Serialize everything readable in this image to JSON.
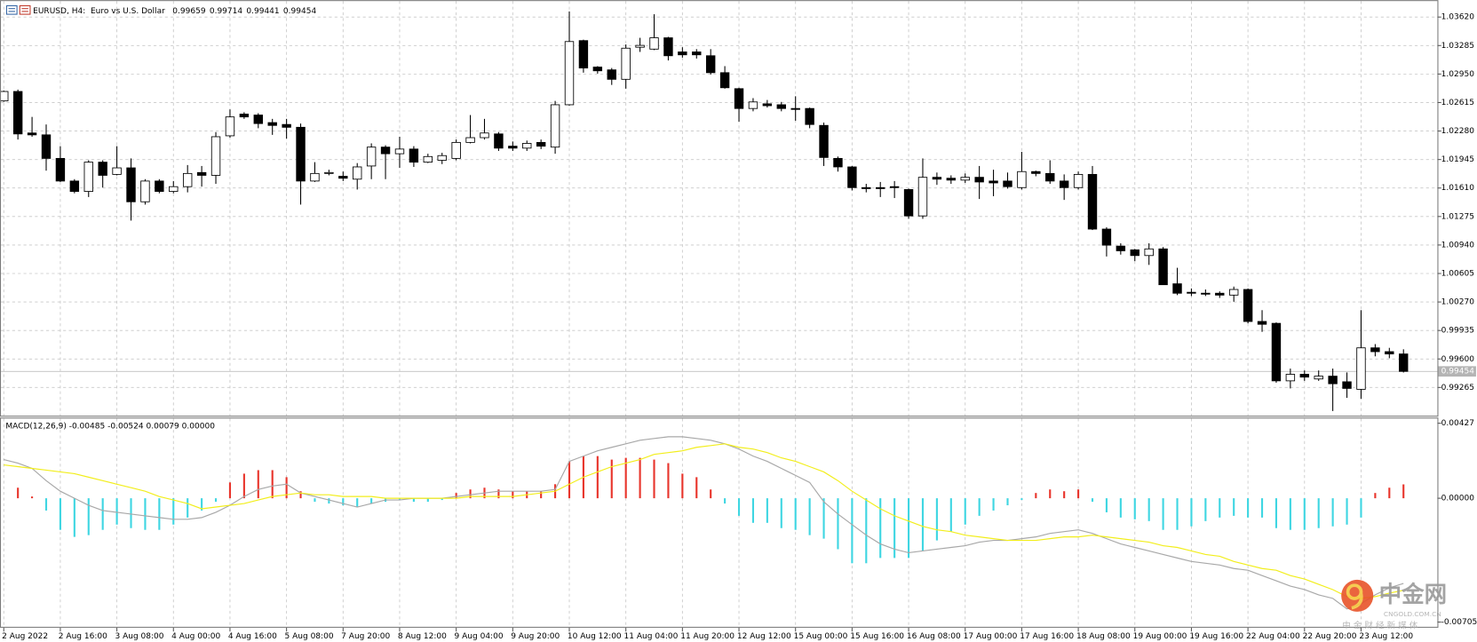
{
  "chart_data": [
    {
      "type": "candlestick",
      "title": "EURUSD, H4:  Euro vs U.S. Dollar",
      "categories": [
        "2 Aug 2022",
        null,
        null,
        null,
        "2 Aug 16:00",
        null,
        null,
        null,
        "3 Aug 08:00",
        null,
        null,
        null,
        "4 Aug 00:00",
        null,
        null,
        null,
        "4 Aug 16:00",
        null,
        null,
        null,
        "5 Aug 08:00",
        null,
        null,
        null,
        "7 Aug 20:00",
        null,
        null,
        null,
        "8 Aug 12:00",
        null,
        null,
        null,
        "9 Aug 04:00",
        null,
        null,
        null,
        "9 Aug 20:00",
        null,
        null,
        null,
        "10 Aug 12:00",
        null,
        null,
        null,
        "11 Aug 04:00",
        null,
        null,
        null,
        "11 Aug 20:00",
        null,
        null,
        null,
        "12 Aug 12:00",
        null,
        null,
        null,
        "15 Aug 00:00",
        null,
        null,
        null,
        "15 Aug 16:00",
        null,
        null,
        null,
        "16 Aug 08:00",
        null,
        null,
        null,
        "17 Aug 00:00",
        null,
        null,
        null,
        "17 Aug 16:00",
        null,
        null,
        null,
        "18 Aug 08:00",
        null,
        null,
        null,
        "19 Aug 00:00",
        null,
        null,
        null,
        "19 Aug 16:00",
        null,
        null,
        null,
        "22 Aug 04:00",
        null,
        null,
        null,
        "22 Aug 20:00",
        null,
        null,
        null,
        "23 Aug 12:00",
        null,
        null,
        null
      ],
      "open": [
        1.02634,
        1.02745,
        1.02257,
        1.02235,
        1.01958,
        1.01692,
        1.0157,
        1.01914,
        1.0177,
        1.01847,
        1.01448,
        1.01692,
        1.0157,
        1.01626,
        1.01792,
        1.01759,
        1.02224,
        1.02479,
        1.02468,
        1.02379,
        1.02357,
        1.02324,
        1.01692,
        1.01781,
        1.01748,
        1.01714,
        1.01869,
        1.02091,
        1.02013,
        1.02068,
        1.01914,
        1.01936,
        1.01958,
        1.02146,
        1.02202,
        1.02246,
        1.02102,
        1.02079,
        1.02146,
        1.02091,
        1.02589,
        1.03343,
        1.03032,
        1.02999,
        1.02888,
        1.03265,
        1.03243,
        1.03376,
        1.0321,
        1.0321,
        1.03165,
        1.02966,
        1.02778,
        1.02545,
        1.026,
        1.02589,
        1.02545,
        1.02545,
        1.02346,
        1.01958,
        1.01858,
        1.01615,
        1.01615,
        1.01626,
        1.01592,
        1.01282,
        1.01736,
        1.01725,
        1.01703,
        1.01736,
        1.01692,
        1.01692,
        1.01615,
        1.01803,
        1.01781,
        1.01692,
        1.01615,
        1.0177,
        1.01127,
        1.00927,
        1.00883,
        1.00816,
        1.00894,
        1.00484,
        1.00384,
        1.00373,
        1.00373,
        1.00351,
        1.00417,
        1.00041,
        1.00019,
        0.99343,
        0.9942,
        0.99365,
        0.99398,
        0.99332,
        0.99243,
        0.99731,
        0.99686,
        0.99659
      ],
      "high": [
        1.02756,
        1.02767,
        1.02446,
        1.02357,
        1.02102,
        1.01714,
        1.01936,
        1.01936,
        1.02102,
        1.01958,
        1.01714,
        1.01714,
        1.01692,
        1.0188,
        1.01869,
        1.02268,
        1.02534,
        1.02501,
        1.0249,
        1.02423,
        1.02423,
        1.02368,
        1.01914,
        1.01825,
        1.01803,
        1.01903,
        1.02135,
        1.02113,
        1.02213,
        1.02102,
        1.02013,
        1.02024,
        1.0218,
        1.02468,
        1.02423,
        1.02268,
        1.02157,
        1.02168,
        1.0218,
        1.02634,
        1.03686,
        1.03354,
        1.03043,
        1.03021,
        1.03298,
        1.03376,
        1.03653,
        1.03387,
        1.03265,
        1.03243,
        1.03243,
        1.03043,
        1.02789,
        1.02667,
        1.02645,
        1.02622,
        1.02689,
        1.02556,
        1.02379,
        1.0198,
        1.01869,
        1.01659,
        1.01681,
        1.01692,
        1.01603,
        1.01958,
        1.01792,
        1.01759,
        1.01781,
        1.01869,
        1.01825,
        1.01792,
        1.02035,
        1.01814,
        1.01936,
        1.0177,
        1.01803,
        1.01869,
        1.01149,
        1.0096,
        1.00894,
        1.0096,
        1.00916,
        1.00672,
        1.00429,
        1.00417,
        1.00395,
        1.00451,
        1.00429,
        1.00174,
        1.0003,
        0.99487,
        0.99465,
        0.99465,
        0.99487,
        0.99442,
        1.00174,
        0.99775,
        0.99731,
        0.99714
      ],
      "low": [
        1.02623,
        1.0218,
        1.02213,
        1.01814,
        1.01681,
        1.01548,
        1.01504,
        1.01615,
        1.01759,
        1.01227,
        1.01415,
        1.01548,
        1.01548,
        1.01559,
        1.01626,
        1.01659,
        1.02202,
        1.02423,
        1.02313,
        1.02235,
        1.02191,
        1.01415,
        1.01681,
        1.01759,
        1.01692,
        1.01592,
        1.01714,
        1.01714,
        1.01847,
        1.01858,
        1.01903,
        1.01891,
        1.01936,
        1.02135,
        1.0218,
        1.02046,
        1.02046,
        1.02046,
        1.02068,
        1.02013,
        1.02578,
        1.02966,
        1.02955,
        1.02822,
        1.02778,
        1.0321,
        1.03232,
        1.0311,
        1.03143,
        1.03132,
        1.02944,
        1.02778,
        1.0239,
        1.02512,
        1.02556,
        1.02512,
        1.02401,
        1.02313,
        1.01869,
        1.01803,
        1.01581,
        1.01559,
        1.01504,
        1.01492,
        1.01248,
        1.01248,
        1.01647,
        1.01659,
        1.0167,
        1.01481,
        1.01514,
        1.01603,
        1.01592,
        1.01748,
        1.01659,
        1.0147,
        1.01592,
        1.01116,
        1.00805,
        1.00827,
        1.0075,
        1.00706,
        1.00473,
        1.00351,
        1.0034,
        1.0034,
        1.00318,
        1.00273,
        1.00019,
        0.99919,
        0.99321,
        0.99254,
        0.99343,
        0.99343,
        0.98988,
        0.99143,
        0.99132,
        0.99631,
        0.99609,
        0.99441
      ],
      "close": [
        1.02745,
        1.02246,
        1.02235,
        1.01958,
        1.01692,
        1.0157,
        1.01914,
        1.01759,
        1.01847,
        1.01448,
        1.01692,
        1.0157,
        1.01626,
        1.01781,
        1.01759,
        1.02213,
        1.02446,
        1.02446,
        1.02368,
        1.02346,
        1.02324,
        1.01692,
        1.01781,
        1.01792,
        1.01725,
        1.01858,
        1.02091,
        1.02013,
        1.02068,
        1.01914,
        1.0198,
        1.01991,
        1.02146,
        1.02202,
        1.02257,
        1.02079,
        1.02079,
        1.02135,
        1.02102,
        1.02589,
        1.03332,
        1.03021,
        1.02988,
        1.02888,
        1.03254,
        1.03287,
        1.03376,
        1.03165,
        1.03176,
        1.03176,
        1.02966,
        1.02789,
        1.02545,
        1.02622,
        1.02578,
        1.02545,
        1.02534,
        1.02357,
        1.01969,
        1.01858,
        1.01615,
        1.01603,
        1.01603,
        1.01615,
        1.01282,
        1.01736,
        1.01714,
        1.01703,
        1.01736,
        1.01681,
        1.0167,
        1.01626,
        1.01803,
        1.01781,
        1.01692,
        1.01615,
        1.0177,
        1.01127,
        1.00938,
        1.00872,
        1.00816,
        1.00894,
        1.00473,
        1.00373,
        1.00373,
        1.00362,
        1.00351,
        1.00417,
        1.00041,
        1.00008,
        0.99343,
        0.9942,
        0.99387,
        0.99398,
        0.99309,
        0.99254,
        0.99731,
        0.99686,
        0.99659,
        0.99454
      ],
      "up_color": "#ffffff",
      "down_color": "#000000",
      "ylim": [
        0.98933,
        1.03819
      ],
      "yticks": [
        {
          "value": 1.0362,
          "label": "1.03620"
        },
        1.03285,
        {
          "value": 1.0295,
          "label": "1.02950"
        },
        1.02615,
        {
          "value": 1.0228,
          "label": "1.02280"
        },
        1.01945,
        {
          "value": 1.0161,
          "label": "1.01610"
        },
        1.01275,
        {
          "value": 1.0094,
          "label": "1.00940"
        },
        1.00605,
        {
          "value": 1.0027,
          "label": "1.00270"
        },
        0.99935,
        {
          "value": 0.996,
          "label": "0.99600"
        },
        0.99265
      ],
      "current_price": 0.99454,
      "grid": true
    },
    {
      "type": "macd",
      "title": "MACD(12,26,9) -0.00485 -0.00524 0.00079 0.00000",
      "histogram": {
        "up_color": "#e8352c",
        "down_color": "#3fd6e2",
        "values": [
          null,
          0.0006,
          0.0001,
          -0.0007,
          -0.0018,
          -0.0022,
          -0.0021,
          -0.0018,
          -0.0015,
          -0.0017,
          -0.0018,
          -0.0018,
          -0.0015,
          -0.0011,
          -0.0007,
          -0.0002,
          0.0009,
          0.0014,
          0.0016,
          0.0016,
          0.0012,
          0.0004,
          -0.0002,
          -0.0003,
          -0.0004,
          -0.0005,
          -0.0003,
          -0.0002,
          -0.0001,
          -0.0002,
          -0.0002,
          -0.0001,
          0.0003,
          0.0005,
          0.0006,
          0.0005,
          0.0004,
          0.0004,
          0.0004,
          0.0008,
          0.0021,
          0.0024,
          0.0024,
          0.0022,
          0.0023,
          0.0023,
          0.0022,
          0.002,
          0.0014,
          0.0012,
          0.0005,
          -0.0003,
          -0.001,
          -0.0014,
          -0.0014,
          -0.0017,
          -0.0018,
          -0.0021,
          -0.0023,
          -0.0029,
          -0.0037,
          -0.0037,
          -0.0034,
          -0.0034,
          -0.0034,
          -0.003,
          -0.0024,
          -0.0019,
          -0.0015,
          -0.001,
          -0.0007,
          -0.0004,
          -0.0001,
          0.0003,
          0.0005,
          0.0004,
          0.0005,
          -0.0002,
          -0.0008,
          -0.0011,
          -0.0012,
          -0.0013,
          -0.0018,
          -0.0018,
          -0.0016,
          -0.0013,
          -0.0011,
          -0.001,
          -0.0011,
          -0.0011,
          -0.0017,
          -0.0018,
          -0.0018,
          -0.0017,
          -0.0016,
          -0.0015,
          -0.0011,
          0.0003,
          0.0006,
          0.00079
        ]
      },
      "series": [
        {
          "color": "#a8a8a8",
          "values": [
            0.0022,
            0.002,
            0.0017,
            0.001,
            0.0004,
            0.0,
            -0.0004,
            -0.0007,
            -0.0008,
            -0.0009,
            -0.001,
            -0.0011,
            -0.0012,
            -0.0012,
            -0.0011,
            -0.0008,
            -0.0004,
            0.0001,
            0.0005,
            0.0007,
            0.0008,
            0.0003,
            0.0001,
            -0.0001,
            -0.0003,
            -0.0005,
            -0.0003,
            -0.0001,
            -0.0001,
            0.0,
            0.0,
            0.0,
            0.0001,
            0.0002,
            0.0003,
            0.0004,
            0.0004,
            0.0004,
            0.0004,
            0.0005,
            0.0021,
            0.0024,
            0.0027,
            0.0029,
            0.0031,
            0.0033,
            0.0034,
            0.0035,
            0.0035,
            0.0034,
            0.0033,
            0.0031,
            0.0028,
            0.0024,
            0.0021,
            0.0017,
            0.0013,
            0.0009,
            -0.0002,
            -0.0009,
            -0.0015,
            -0.0021,
            -0.0026,
            -0.0029,
            -0.0031,
            -0.003,
            -0.0029,
            -0.0028,
            -0.0027,
            -0.0025,
            -0.0024,
            -0.0024,
            -0.0023,
            -0.0022,
            -0.002,
            -0.0019,
            -0.0018,
            -0.002,
            -0.0023,
            -0.0026,
            -0.0028,
            -0.003,
            -0.0032,
            -0.0034,
            -0.0036,
            -0.0037,
            -0.0038,
            -0.004,
            -0.0041,
            -0.0044,
            -0.0047,
            -0.005,
            -0.0052,
            -0.0055,
            -0.0057,
            -0.0063,
            -0.006,
            -0.0055,
            -0.0051,
            -0.00485
          ]
        },
        {
          "color": "#f2ee1c",
          "values": [
            0.0019,
            0.0018,
            0.0017,
            0.0016,
            0.0015,
            0.0014,
            0.0012,
            0.001,
            0.0008,
            0.0006,
            0.0004,
            0.0001,
            -0.0001,
            -0.0003,
            -0.0006,
            -0.0005,
            -0.0004,
            -0.0003,
            -0.0001,
            0.0001,
            0.0002,
            0.0003,
            0.0002,
            0.0002,
            0.0001,
            0.0001,
            0.0001,
            0.0,
            0.0,
            0.0,
            0.0,
            0.0,
            0.0,
            0.0001,
            0.0001,
            0.0001,
            0.0001,
            0.0002,
            0.0003,
            0.0004,
            0.0008,
            0.0012,
            0.0015,
            0.0018,
            0.002,
            0.0022,
            0.0025,
            0.0026,
            0.0027,
            0.0029,
            0.003,
            0.0031,
            0.0029,
            0.0028,
            0.0026,
            0.0023,
            0.0021,
            0.0018,
            0.0015,
            0.001,
            0.0004,
            -0.0001,
            -0.0006,
            -0.001,
            -0.0013,
            -0.0016,
            -0.0018,
            -0.0019,
            -0.0021,
            -0.0022,
            -0.0023,
            -0.0024,
            -0.0024,
            -0.0024,
            -0.0023,
            -0.0022,
            -0.0022,
            -0.0021,
            -0.0022,
            -0.0023,
            -0.0024,
            -0.0025,
            -0.0027,
            -0.0028,
            -0.003,
            -0.0032,
            -0.0033,
            -0.0036,
            -0.0038,
            -0.004,
            -0.0041,
            -0.0044,
            -0.0046,
            -0.0049,
            -0.0052,
            -0.0056,
            -0.0057,
            -0.0056,
            -0.0054,
            -0.00524
          ]
        }
      ],
      "ylim": [
        -0.00705,
        0.00427
      ],
      "yticks": [
        0.00427,
        {
          "value": 0,
          "label": "0.00000"
        },
        -0.00705
      ]
    }
  ],
  "watermark": {
    "brand": "中金网",
    "domain": "CNGOLD.COM.CN",
    "tagline": "中 金 财 经 新 媒 体"
  }
}
